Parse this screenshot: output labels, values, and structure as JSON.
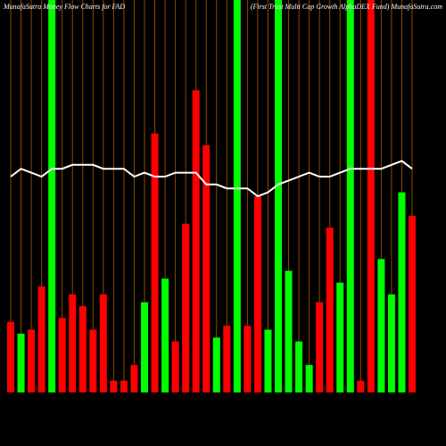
{
  "chart_data": {
    "type": "bar",
    "title": "MunafaSutra  Money Flow  Charts for FAD",
    "subtitle": "(First Trust Multi Cap Growth AlphaDEX Fund) MunafaSutra.com",
    "categories": [
      null,
      null,
      null,
      null,
      null,
      null,
      null,
      null,
      null,
      null,
      null,
      null,
      null,
      null,
      null,
      null,
      null,
      null,
      null,
      null,
      null,
      null,
      null,
      null,
      null,
      null,
      null,
      null,
      null,
      null,
      null,
      null,
      null,
      null,
      null,
      null,
      null,
      null,
      null,
      null
    ],
    "ylim": [
      0,
      100
    ],
    "grid": true,
    "grid_color": "#8a4a00",
    "background": "#000000",
    "series": [
      {
        "type": "bar",
        "values": [
          18,
          15,
          16,
          27,
          100,
          19,
          25,
          22,
          16,
          25,
          3,
          3,
          7,
          23,
          66,
          29,
          13,
          43,
          77,
          63,
          14,
          17,
          100,
          17,
          50,
          16,
          100,
          31,
          13,
          7,
          23,
          42,
          28,
          100,
          3,
          100,
          34,
          25,
          51,
          45
        ],
        "colors": [
          "#ff0000",
          "#00ff00",
          "#ff0000",
          "#ff0000",
          "#00ff00",
          "#ff0000",
          "#ff0000",
          "#ff0000",
          "#ff0000",
          "#ff0000",
          "#ff0000",
          "#ff0000",
          "#ff0000",
          "#00ff00",
          "#ff0000",
          "#00ff00",
          "#ff0000",
          "#ff0000",
          "#ff0000",
          "#ff0000",
          "#00ff00",
          "#ff0000",
          "#00ff00",
          "#ff0000",
          "#ff0000",
          "#00ff00",
          "#00ff00",
          "#00ff00",
          "#00ff00",
          "#00ff00",
          "#ff0000",
          "#ff0000",
          "#00ff00",
          "#00ff00",
          "#ff0000",
          "#ff0000",
          "#00ff00",
          "#00ff00",
          "#00ff00",
          "#ff0000"
        ]
      },
      {
        "type": "line",
        "color": "#ffffff",
        "values": [
          55,
          57,
          56,
          55,
          57,
          57,
          58,
          58,
          58,
          57,
          57,
          57,
          55,
          56,
          55,
          55,
          56,
          56,
          56,
          53,
          53,
          52,
          52,
          52,
          50,
          51,
          53,
          54,
          55,
          56,
          55,
          55,
          56,
          57,
          57,
          57,
          57,
          58,
          59,
          57
        ]
      }
    ]
  }
}
